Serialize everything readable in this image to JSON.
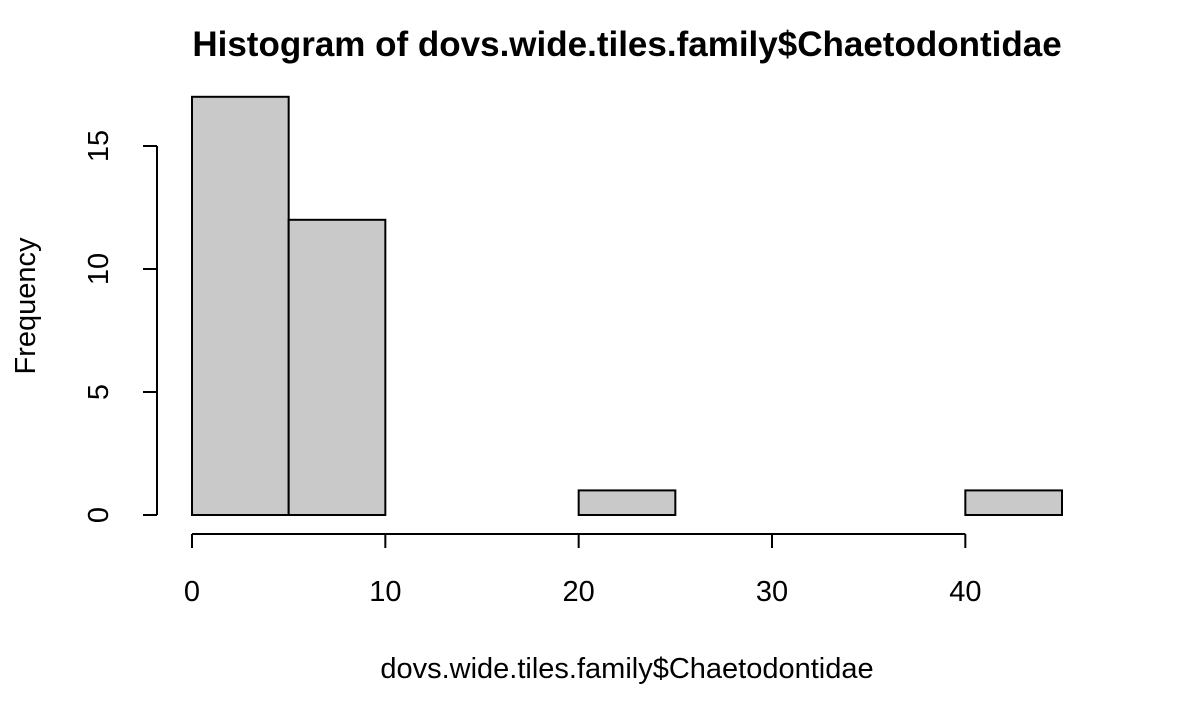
{
  "chart_data": {
    "type": "bar",
    "subtype": "histogram",
    "title": "Histogram of dovs.wide.tiles.family$Chaetodontidae",
    "xlabel": "dovs.wide.tiles.family$Chaetodontidae",
    "ylabel": "Frequency",
    "bins": [
      {
        "start": 0,
        "end": 5,
        "count": 17
      },
      {
        "start": 5,
        "end": 10,
        "count": 12
      },
      {
        "start": 10,
        "end": 15,
        "count": 0
      },
      {
        "start": 15,
        "end": 20,
        "count": 0
      },
      {
        "start": 20,
        "end": 25,
        "count": 1
      },
      {
        "start": 25,
        "end": 30,
        "count": 0
      },
      {
        "start": 30,
        "end": 35,
        "count": 0
      },
      {
        "start": 35,
        "end": 40,
        "count": 0
      },
      {
        "start": 40,
        "end": 45,
        "count": 1
      }
    ],
    "xticks": [
      0,
      10,
      20,
      30,
      40
    ],
    "yticks": [
      0,
      5,
      10,
      15
    ],
    "xlim": [
      0,
      45
    ],
    "ylim": [
      0,
      17
    ],
    "bar_color": "#c9c9c9",
    "border_color": "#000000",
    "grid": false,
    "legend": "none"
  }
}
